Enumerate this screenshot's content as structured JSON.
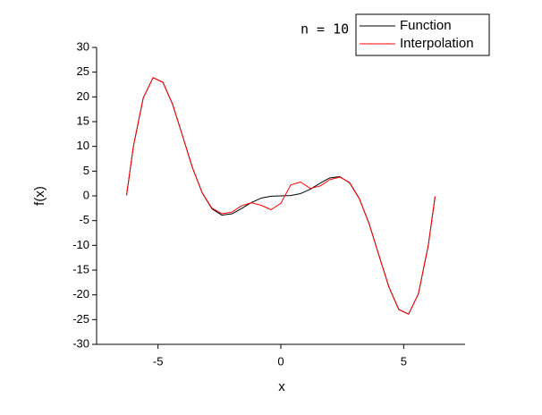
{
  "chart_data": {
    "type": "line",
    "x_label": "x",
    "y_label": "f(x)",
    "annotation": "n = 10",
    "x": [
      -6.28,
      -6.0,
      -5.6,
      -5.2,
      -4.8,
      -4.4,
      -4.0,
      -3.6,
      -3.2,
      -2.8,
      -2.4,
      -2.0,
      -1.6,
      -1.2,
      -0.8,
      -0.4,
      0,
      0.4,
      0.8,
      1.2,
      1.6,
      2.0,
      2.4,
      2.8,
      3.2,
      3.6,
      4.0,
      4.4,
      4.8,
      5.2,
      5.6,
      6.0,
      6.28
    ],
    "series": [
      {
        "name": "Function",
        "color": "#000000",
        "values": [
          0.1,
          10.06,
          19.8,
          23.89,
          22.95,
          18.42,
          12.11,
          5.73,
          0.6,
          -2.63,
          -3.89,
          -3.64,
          -2.56,
          -1.34,
          -0.46,
          -0.06,
          0,
          0.06,
          0.46,
          1.34,
          2.56,
          3.64,
          3.89,
          2.63,
          -0.6,
          -5.73,
          -12.11,
          -18.42,
          -22.95,
          -23.89,
          -19.8,
          -10.06,
          -0.1
        ]
      },
      {
        "name": "Interpolation",
        "color": "#ff0000",
        "values": [
          0.1,
          10.06,
          19.8,
          23.89,
          22.95,
          18.42,
          12.11,
          5.73,
          0.6,
          -2.5,
          -3.6,
          -3.3,
          -2.0,
          -1.4,
          -1.9,
          -2.8,
          -1.5,
          2.2,
          2.8,
          1.5,
          2.0,
          3.3,
          3.8,
          2.7,
          -0.6,
          -5.73,
          -12.11,
          -18.42,
          -22.95,
          -23.89,
          -19.8,
          -10.06,
          -0.1
        ]
      }
    ],
    "xlim": [
      -7.5,
      7.5
    ],
    "xticks": [
      -5,
      0,
      5
    ],
    "ylim": [
      -30,
      30
    ],
    "yticks": [
      -30,
      -25,
      -20,
      -15,
      -10,
      -5,
      0,
      5,
      10,
      15,
      20,
      25,
      30
    ]
  }
}
